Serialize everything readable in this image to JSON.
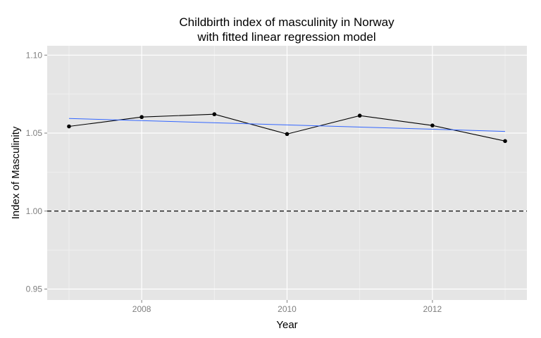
{
  "chart_data": {
    "type": "line",
    "title_line1": "Childbirth index of masculinity in Norway",
    "title_line2": "with fitted linear regression model",
    "xlabel": "Year",
    "ylabel": "Index of Masculinity",
    "xlim": [
      2006.7,
      2013.3
    ],
    "ylim": [
      0.943,
      1.106
    ],
    "x_ticks": [
      2008,
      2010,
      2012
    ],
    "x_tick_labels": [
      "2008",
      "2010",
      "2012"
    ],
    "y_ticks": [
      0.95,
      1.0,
      1.05,
      1.1
    ],
    "y_tick_labels": [
      "0.95",
      "1.00",
      "1.05",
      "1.10"
    ],
    "grid": true,
    "series": [
      {
        "type": "line+points",
        "color": "#000000",
        "x": [
          2007,
          2008,
          2009,
          2010,
          2011,
          2012,
          2013
        ],
        "y": [
          1.0543,
          1.0603,
          1.0621,
          1.0494,
          1.0612,
          1.0549,
          1.0449
        ]
      },
      {
        "type": "regression",
        "color": "#3366ff",
        "x": [
          2007,
          2013
        ],
        "y": [
          1.0594,
          1.0511
        ]
      }
    ],
    "reference_line": {
      "y": 1.0,
      "style": "dashed",
      "color": "#000000"
    }
  }
}
